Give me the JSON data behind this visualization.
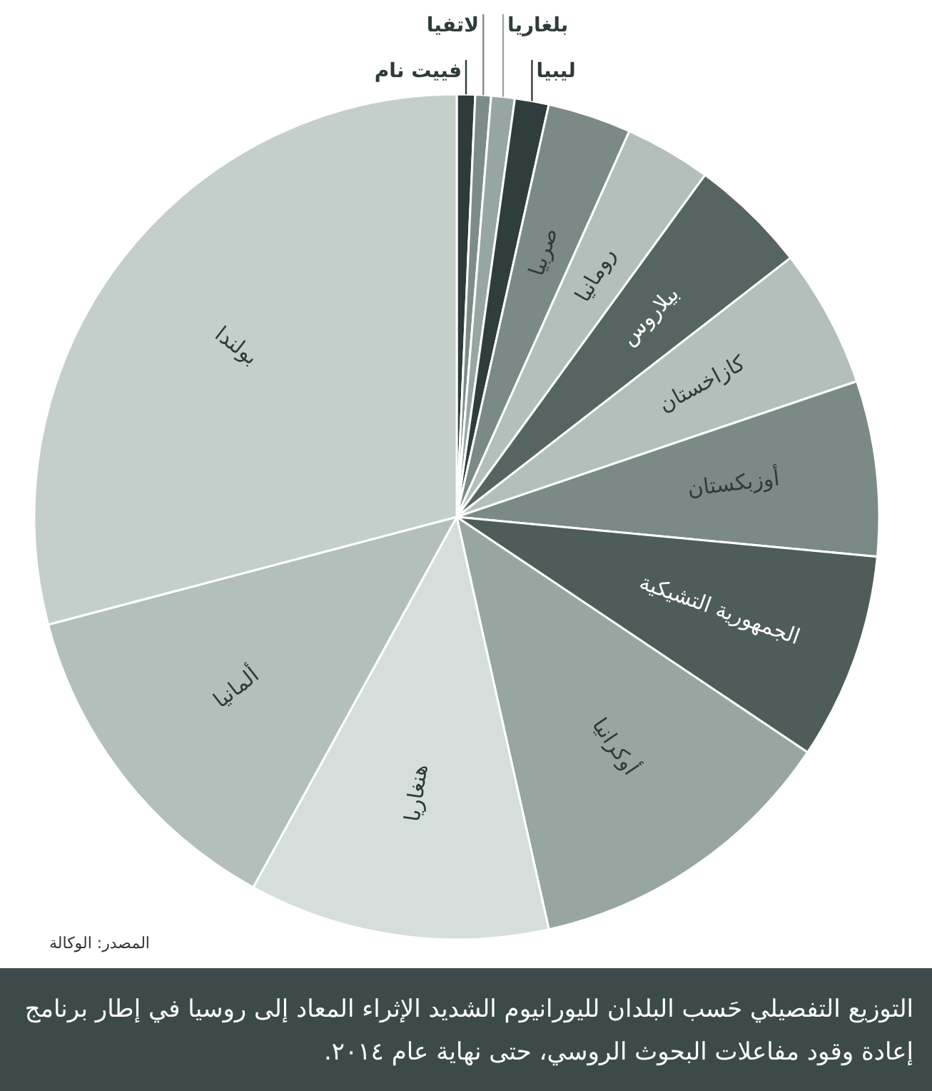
{
  "chart_data": {
    "type": "pie",
    "title": "التوزيع التفصيلي حَسب البلدان لليورانيوم الشديد الإثراء المعاد إلى روسيا في إطار برنامج إعادة وقود مفاعلات البحوث الروسي، حتى نهاية عام ٢٠١٤.",
    "categories": [
      "فييت نام",
      "لاتفيا",
      "بلغاريا",
      "ليبيا",
      "صربيا",
      "رومانيا",
      "بيلاروس",
      "كازاخستان",
      "أوزبكستان",
      "الجمهورية التشيكية",
      "أوكرانيا",
      "هنغاريا",
      "ألمانيا",
      "بولندا"
    ],
    "values": [
      0.7,
      0.6,
      0.9,
      1.3,
      3.2,
      3.3,
      4.5,
      5.3,
      6.7,
      7.9,
      12.1,
      11.5,
      12.9,
      29.1
    ],
    "colors": [
      "#2e3b3b",
      "#7d8c89",
      "#98a6a3",
      "#2f3d3c",
      "#7b8a87",
      "#b2bfbb",
      "#566462",
      "#b2bfbb",
      "#7b8a87",
      "#4e5c5a",
      "#98a6a2",
      "#d5dedb",
      "#b2bfbb",
      "#c4cfcc"
    ],
    "annotations": [
      "المصدر: الوكالة"
    ]
  }
}
